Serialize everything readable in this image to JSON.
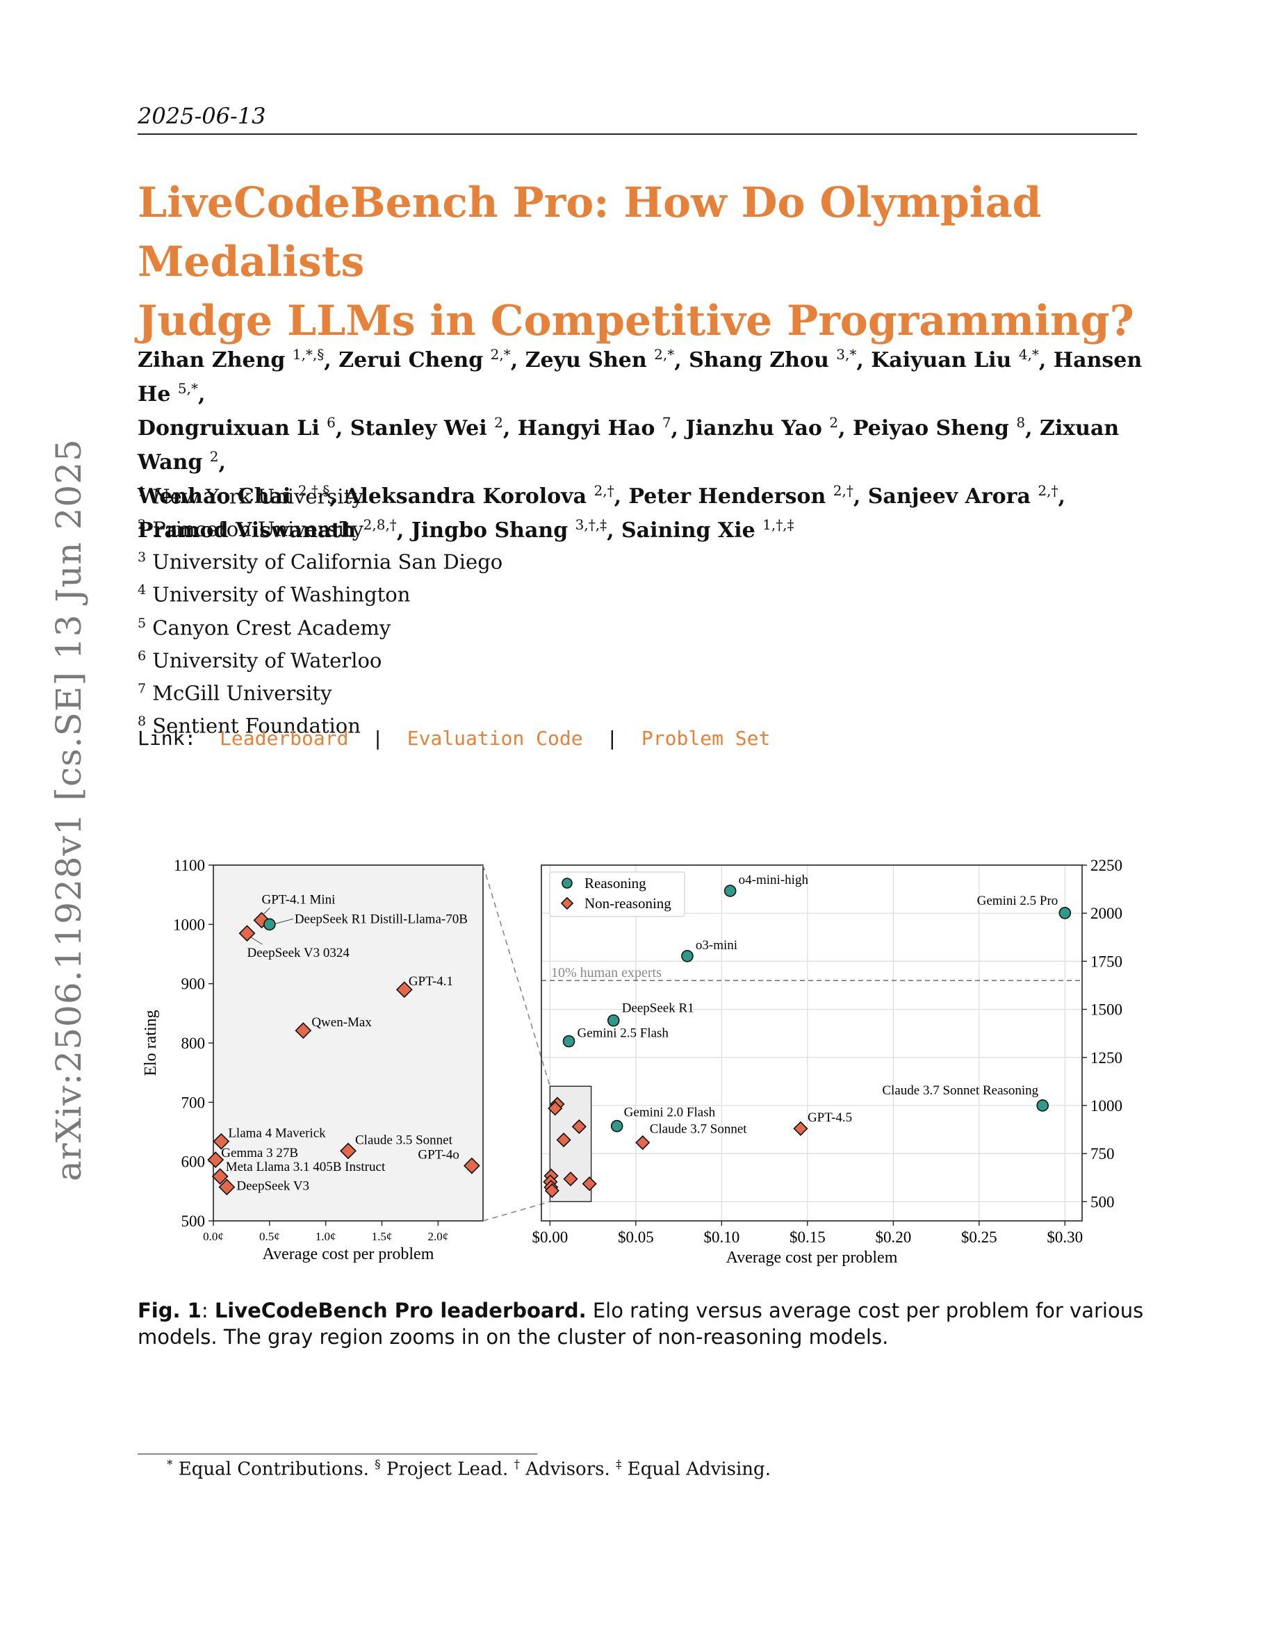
{
  "header": {
    "date": "2025-06-13"
  },
  "title": [
    "LiveCodeBench Pro: How Do Olympiad Medalists",
    "Judge LLMs in Competitive Programming?"
  ],
  "authors": [
    [
      [
        "Zihan Zheng",
        "1,*,§"
      ],
      [
        "Zerui Cheng",
        "2,*"
      ],
      [
        "Zeyu Shen",
        "2,*"
      ],
      [
        "Shang Zhou",
        "3,*"
      ],
      [
        "Kaiyuan Liu",
        "4,*"
      ],
      [
        "Hansen He",
        "5,*"
      ]
    ],
    [
      [
        "Dongruixuan Li",
        "6"
      ],
      [
        "Stanley Wei",
        "2"
      ],
      [
        "Hangyi Hao",
        "7"
      ],
      [
        "Jianzhu Yao",
        "2"
      ],
      [
        "Peiyao Sheng",
        "8"
      ],
      [
        "Zixuan Wang",
        "2"
      ]
    ],
    [
      [
        "Wenhao Chai",
        "2,†,§"
      ],
      [
        "Aleksandra Korolova",
        "2,†"
      ],
      [
        "Peter Henderson",
        "2,†"
      ],
      [
        "Sanjeev Arora",
        "2,†"
      ]
    ],
    [
      [
        "Pramod Viswanath",
        "2,8,†"
      ],
      [
        "Jingbo Shang",
        "3,†,‡"
      ],
      [
        "Saining Xie",
        "1,†,‡"
      ]
    ]
  ],
  "affiliations": [
    [
      "1",
      "New York University"
    ],
    [
      "2",
      "Princeton University"
    ],
    [
      "3",
      "University of California San Diego"
    ],
    [
      "4",
      "University of Washington"
    ],
    [
      "5",
      "Canyon Crest Academy"
    ],
    [
      "6",
      "University of Waterloo"
    ],
    [
      "7",
      "McGill University"
    ],
    [
      "8",
      "Sentient Foundation"
    ]
  ],
  "links": {
    "prefix": "Link:",
    "separator": "|",
    "items": [
      "Leaderboard",
      "Evaluation Code",
      "Problem Set"
    ]
  },
  "sidebar": "arXiv:2506.11928v1  [cs.SE]  13 Jun 2025",
  "colors": {
    "accent": "#e6813a",
    "reasoning": "#2f9a8a",
    "non_reasoning": "#e3694a"
  },
  "chart_data": [
    {
      "type": "scatter",
      "xlabel": "Average cost per problem",
      "ylabel": "Elo rating",
      "xlim": [
        0,
        2.4
      ],
      "ylim": [
        500,
        1100
      ],
      "xticks": [
        0,
        0.5,
        1.0,
        1.5,
        2.0
      ],
      "xtick_labels": [
        "0.0¢",
        "0.5¢",
        "1.0¢",
        "1.5¢",
        "2.0¢"
      ],
      "yticks": [
        500,
        600,
        700,
        800,
        900,
        1000,
        1100
      ],
      "grid": false,
      "points": [
        {
          "label": "GPT-4.1 Mini",
          "x": 0.43,
          "y": 1007,
          "kind": "non_reasoning"
        },
        {
          "label": "DeepSeek R1 Distill-Llama-70B",
          "x": 0.5,
          "y": 1000,
          "kind": "reasoning"
        },
        {
          "label": "DeepSeek V3 0324",
          "x": 0.3,
          "y": 985,
          "kind": "non_reasoning"
        },
        {
          "label": "GPT-4.1",
          "x": 1.7,
          "y": 890,
          "kind": "non_reasoning"
        },
        {
          "label": "Qwen-Max",
          "x": 0.8,
          "y": 821,
          "kind": "non_reasoning"
        },
        {
          "label": "Llama 4 Maverick",
          "x": 0.07,
          "y": 634,
          "kind": "non_reasoning"
        },
        {
          "label": "Claude 3.5 Sonnet",
          "x": 1.2,
          "y": 618,
          "kind": "non_reasoning"
        },
        {
          "label": "GPT-4o",
          "x": 2.3,
          "y": 593,
          "kind": "non_reasoning"
        },
        {
          "label": "Gemma 3 27B",
          "x": 0.02,
          "y": 603,
          "kind": "non_reasoning"
        },
        {
          "label": "Meta Llama 3.1 405B Instruct",
          "x": 0.06,
          "y": 575,
          "kind": "non_reasoning"
        },
        {
          "label": "DeepSeek V3",
          "x": 0.12,
          "y": 557,
          "kind": "non_reasoning"
        }
      ]
    },
    {
      "type": "scatter",
      "xlabel": "Average cost per problem",
      "xlim": [
        -0.005,
        0.31
      ],
      "ylim": [
        400,
        2250
      ],
      "xticks": [
        0,
        0.05,
        0.1,
        0.15,
        0.2,
        0.25,
        0.3
      ],
      "xtick_labels": [
        "$0.00",
        "$0.05",
        "$0.10",
        "$0.15",
        "$0.20",
        "$0.25",
        "$0.30"
      ],
      "yticks": [
        500,
        750,
        1000,
        1250,
        1500,
        1750,
        2000,
        2250
      ],
      "y_axis_side": "right",
      "grid": true,
      "legend": {
        "placement": "top-left",
        "entries": [
          "Reasoning",
          "Non-reasoning"
        ]
      },
      "reference_line": {
        "y": 1650,
        "label": "10% human experts"
      },
      "zoom_box": {
        "x": [
          0,
          0.024
        ],
        "y": [
          500,
          1100
        ]
      },
      "points": [
        {
          "label": "o4-mini-high",
          "x": 0.105,
          "y": 2116,
          "kind": "reasoning"
        },
        {
          "label": "Gemini 2.5 Pro",
          "x": 0.3,
          "y": 2001,
          "kind": "reasoning"
        },
        {
          "label": "o3-mini",
          "x": 0.08,
          "y": 1777,
          "kind": "reasoning"
        },
        {
          "label": "DeepSeek R1",
          "x": 0.037,
          "y": 1442,
          "kind": "reasoning"
        },
        {
          "label": "Gemini 2.5 Flash",
          "x": 0.011,
          "y": 1334,
          "kind": "reasoning"
        },
        {
          "label": "Claude 3.7 Sonnet Reasoning",
          "x": 0.287,
          "y": 1000,
          "kind": "reasoning"
        },
        {
          "label": "Gemini 2.0 Flash",
          "x": 0.039,
          "y": 893,
          "kind": "reasoning"
        },
        {
          "label": "GPT-4.5",
          "x": 0.146,
          "y": 880,
          "kind": "non_reasoning"
        },
        {
          "label": "Claude 3.7 Sonnet",
          "x": 0.054,
          "y": 807,
          "kind": "non_reasoning"
        },
        {
          "label": "",
          "x": 0.0043,
          "y": 1007,
          "kind": "non_reasoning"
        },
        {
          "label": "",
          "x": 0.003,
          "y": 985,
          "kind": "non_reasoning"
        },
        {
          "label": "",
          "x": 0.017,
          "y": 890,
          "kind": "non_reasoning"
        },
        {
          "label": "",
          "x": 0.008,
          "y": 821,
          "kind": "non_reasoning"
        },
        {
          "label": "",
          "x": 0.0007,
          "y": 634,
          "kind": "non_reasoning"
        },
        {
          "label": "",
          "x": 0.012,
          "y": 618,
          "kind": "non_reasoning"
        },
        {
          "label": "",
          "x": 0.023,
          "y": 593,
          "kind": "non_reasoning"
        },
        {
          "label": "",
          "x": 0.0002,
          "y": 603,
          "kind": "non_reasoning"
        },
        {
          "label": "",
          "x": 0.0006,
          "y": 575,
          "kind": "non_reasoning"
        },
        {
          "label": "",
          "x": 0.0012,
          "y": 557,
          "kind": "non_reasoning"
        }
      ]
    }
  ],
  "caption": {
    "label": "Fig. 1",
    "bold": "LiveCodeBench Pro leaderboard.",
    "text": " Elo rating versus average cost per problem for various models. The gray region zooms in on the cluster of non-reasoning models."
  },
  "footnote": [
    [
      "*",
      "Equal Contributions."
    ],
    [
      "§",
      "Project Lead."
    ],
    [
      "†",
      "Advisors."
    ],
    [
      "‡",
      "Equal Advising."
    ]
  ]
}
